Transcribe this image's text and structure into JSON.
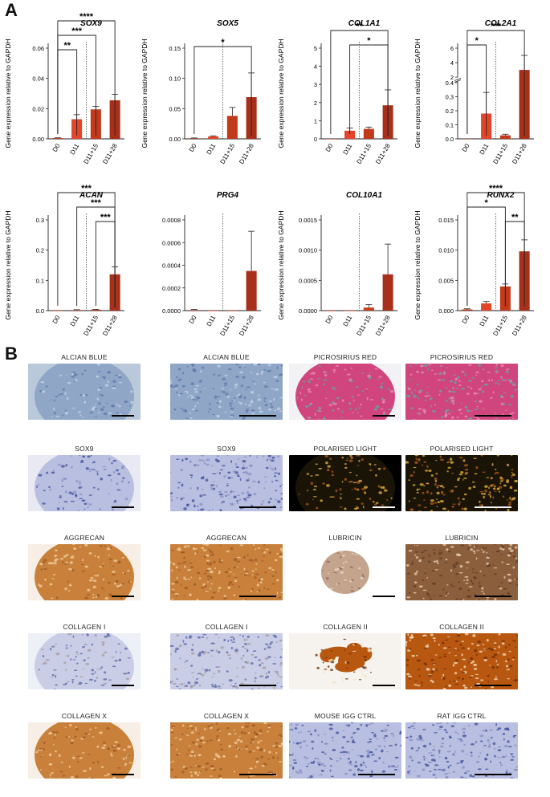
{
  "panel_labels": {
    "a": "A",
    "b": "B"
  },
  "chart_data": [
    {
      "type": "bar",
      "title": "SOX9",
      "ylabel": "Gene expression relative to GAPDH",
      "categories": [
        "D0",
        "D11",
        "D11+15",
        "D11+28"
      ],
      "values": [
        0.0005,
        0.013,
        0.0195,
        0.0255
      ],
      "errors": [
        0.0002,
        0.003,
        0.002,
        0.004
      ],
      "ylim": [
        0,
        0.06
      ],
      "yticks": [
        "0.00",
        "0.02",
        "0.04",
        "0.06"
      ],
      "divider_after": 1,
      "bar_colors": [
        "#c23a1a",
        "#e2452a",
        "#c23a1a",
        "#a8301a"
      ],
      "significance": [
        {
          "from": 0,
          "to": 1,
          "label": "**"
        },
        {
          "from": 0,
          "to": 2,
          "label": "***"
        },
        {
          "from": 0,
          "to": 3,
          "label": "****"
        }
      ]
    },
    {
      "type": "bar",
      "title": "SOX5",
      "ylabel": "Gene expression relative to GAPDH",
      "categories": [
        "D0",
        "D11",
        "D11+15",
        "D11+28"
      ],
      "values": [
        0.001,
        0.004,
        0.038,
        0.069
      ],
      "errors": [
        0.0005,
        0.001,
        0.014,
        0.04
      ],
      "ylim": [
        0,
        0.15
      ],
      "yticks": [
        "0.00",
        "0.05",
        "0.10",
        "0.15"
      ],
      "divider_after": 1,
      "bar_colors": [
        "#c23a1a",
        "#e2452a",
        "#c23a1a",
        "#a8301a"
      ],
      "significance": [
        {
          "from": 0,
          "to": 3,
          "label": "*"
        }
      ]
    },
    {
      "type": "bar",
      "title": "COL1A1",
      "ylabel": "Gene expression relative to GAPDH",
      "categories": [
        "D0",
        "D11",
        "D11+15",
        "D11+28"
      ],
      "values": [
        0.0,
        0.45,
        0.55,
        1.85
      ],
      "errors": [
        0.0,
        0.15,
        0.1,
        0.85
      ],
      "ylim": [
        0,
        5
      ],
      "yticks": [
        "0",
        "1",
        "2",
        "3",
        "4",
        "5"
      ],
      "divider_after": 1,
      "bar_colors": [
        "#c23a1a",
        "#e2452a",
        "#c23a1a",
        "#a8301a"
      ],
      "significance": [
        {
          "from": 1,
          "to": 3,
          "label": "*"
        },
        {
          "from": 0,
          "to": 3,
          "label": "**"
        }
      ]
    },
    {
      "type": "bar",
      "title": "COL2A1",
      "ylabel": "Gene expression relative to GAPDH",
      "categories": [
        "D0",
        "D11",
        "D11+15",
        "D11+28"
      ],
      "values": [
        0.0,
        0.18,
        0.025,
        3.0
      ],
      "errors": [
        0.0,
        0.15,
        0.008,
        2.0
      ],
      "ylim": [
        0,
        6
      ],
      "axis_break": [
        0.4,
        2
      ],
      "yticks": [
        "0.0",
        "0.1",
        "0.2",
        "0.3",
        "0.4",
        "2",
        "4",
        "6"
      ],
      "divider_after": 1,
      "bar_colors": [
        "#c23a1a",
        "#e2452a",
        "#c23a1a",
        "#a8301a"
      ],
      "significance": [
        {
          "from": 0,
          "to": 1,
          "label": "*"
        },
        {
          "from": 0,
          "to": 3,
          "label": "***"
        }
      ]
    },
    {
      "type": "bar",
      "title": "ACAN",
      "ylabel": "Gene expression relative to GAPDH",
      "categories": [
        "D0",
        "D11",
        "D11+15",
        "D11+28"
      ],
      "values": [
        0.0,
        0.002,
        0.003,
        0.12
      ],
      "errors": [
        0.0,
        0.001,
        0.001,
        0.025
      ],
      "ylim": [
        0,
        0.3
      ],
      "yticks": [
        "0.0",
        "0.1",
        "0.2",
        "0.3"
      ],
      "divider_after": 1,
      "bar_colors": [
        "#c23a1a",
        "#e2452a",
        "#c23a1a",
        "#a8301a"
      ],
      "significance": [
        {
          "from": 2,
          "to": 3,
          "label": "***"
        },
        {
          "from": 1,
          "to": 3,
          "label": "***"
        },
        {
          "from": 0,
          "to": 3,
          "label": "***"
        }
      ]
    },
    {
      "type": "bar",
      "title": "PRG4",
      "ylabel": "",
      "categories": [
        "D0",
        "D11",
        "D11+15",
        "D11+28"
      ],
      "values": [
        5e-06,
        0.0,
        0.0,
        0.00035
      ],
      "errors": [
        5e-06,
        0.0,
        0.0,
        0.00035
      ],
      "ylim": [
        0,
        0.0008
      ],
      "yticks": [
        "0.0000",
        "0.0002",
        "0.0004",
        "0.0006",
        "0.0008"
      ],
      "divider_after": 1,
      "bar_colors": [
        "#c23a1a",
        "#e2452a",
        "#c23a1a",
        "#a8301a"
      ],
      "significance": []
    },
    {
      "type": "bar",
      "title": "COL10A1",
      "ylabel": "Gene expression relative to GAPDH",
      "categories": [
        "D0",
        "D11",
        "D11+15",
        "D11+28"
      ],
      "values": [
        0.0,
        0.0,
        5e-05,
        0.0006
      ],
      "errors": [
        0.0,
        0.0,
        5e-05,
        0.0005
      ],
      "ylim": [
        0,
        0.0015
      ],
      "yticks": [
        "0.0000",
        "0.0005",
        "0.0010",
        "0.0015"
      ],
      "divider_after": 1,
      "bar_colors": [
        "#c23a1a",
        "#e2452a",
        "#c23a1a",
        "#a8301a"
      ],
      "significance": []
    },
    {
      "type": "bar",
      "title": "RUNX2",
      "ylabel": "Gene expression relative to GAPDH",
      "categories": [
        "D0",
        "D11",
        "D11+15",
        "D11+28"
      ],
      "values": [
        0.0002,
        0.0012,
        0.004,
        0.0098
      ],
      "errors": [
        0.0001,
        0.0003,
        0.0004,
        0.0019
      ],
      "ylim": [
        0,
        0.015
      ],
      "yticks": [
        "0.000",
        "0.005",
        "0.010",
        "0.015"
      ],
      "divider_after": 1,
      "bar_colors": [
        "#c23a1a",
        "#e2452a",
        "#c23a1a",
        "#a8301a"
      ],
      "significance": [
        {
          "from": 2,
          "to": 3,
          "label": "**"
        },
        {
          "from": 0,
          "to": 2,
          "label": "*"
        },
        {
          "from": 0,
          "to": 3,
          "label": "****"
        }
      ]
    }
  ],
  "histology": [
    [
      {
        "label": "ALCIAN BLUE",
        "stain": "alcian",
        "view": "whole",
        "scalebar": true
      },
      {
        "label": "ALCIAN BLUE",
        "stain": "alcian",
        "view": "zoom",
        "scalebar": true
      },
      {
        "label": "PICROSIRIUS RED",
        "stain": "picro",
        "view": "whole",
        "scalebar": true
      },
      {
        "label": "PICROSIRIUS RED",
        "stain": "picro",
        "view": "zoom",
        "scalebar": true
      }
    ],
    [
      {
        "label": "SOX9",
        "stain": "hema",
        "view": "whole",
        "scalebar": true
      },
      {
        "label": "SOX9",
        "stain": "hema",
        "view": "zoom",
        "scalebar": true
      },
      {
        "label": "POLARISED LIGHT",
        "stain": "polar",
        "view": "whole",
        "scalebar": true
      },
      {
        "label": "POLARISED LIGHT",
        "stain": "polar",
        "view": "zoom",
        "scalebar": true
      }
    ],
    [
      {
        "label": "AGGRECAN",
        "stain": "brown",
        "view": "whole",
        "scalebar": true
      },
      {
        "label": "AGGRECAN",
        "stain": "brown",
        "view": "zoom",
        "scalebar": true
      },
      {
        "label": "LUBRICIN",
        "stain": "lubricin",
        "view": "small",
        "scalebar": true
      },
      {
        "label": "LUBRICIN",
        "stain": "brownzoom",
        "view": "zoom",
        "scalebar": true
      }
    ],
    [
      {
        "label": "COLLAGEN I",
        "stain": "hema-light",
        "view": "whole",
        "scalebar": true
      },
      {
        "label": "COLLAGEN I",
        "stain": "hema-light",
        "view": "zoom",
        "scalebar": true
      },
      {
        "label": "COLLAGEN II",
        "stain": "col2",
        "view": "patchy",
        "scalebar": true
      },
      {
        "label": "COLLAGEN II",
        "stain": "col2",
        "view": "zoom",
        "scalebar": true
      }
    ],
    [
      {
        "label": "COLLAGEN X",
        "stain": "brown",
        "view": "whole",
        "scalebar": true
      },
      {
        "label": "COLLAGEN X",
        "stain": "brown",
        "view": "zoom",
        "scalebar": true
      },
      {
        "label": "MOUSE IGG CTRL",
        "stain": "hema",
        "view": "zoom",
        "scalebar": true
      },
      {
        "label": "RAT IGG CTRL",
        "stain": "hema",
        "view": "zoom",
        "scalebar": true
      }
    ]
  ]
}
